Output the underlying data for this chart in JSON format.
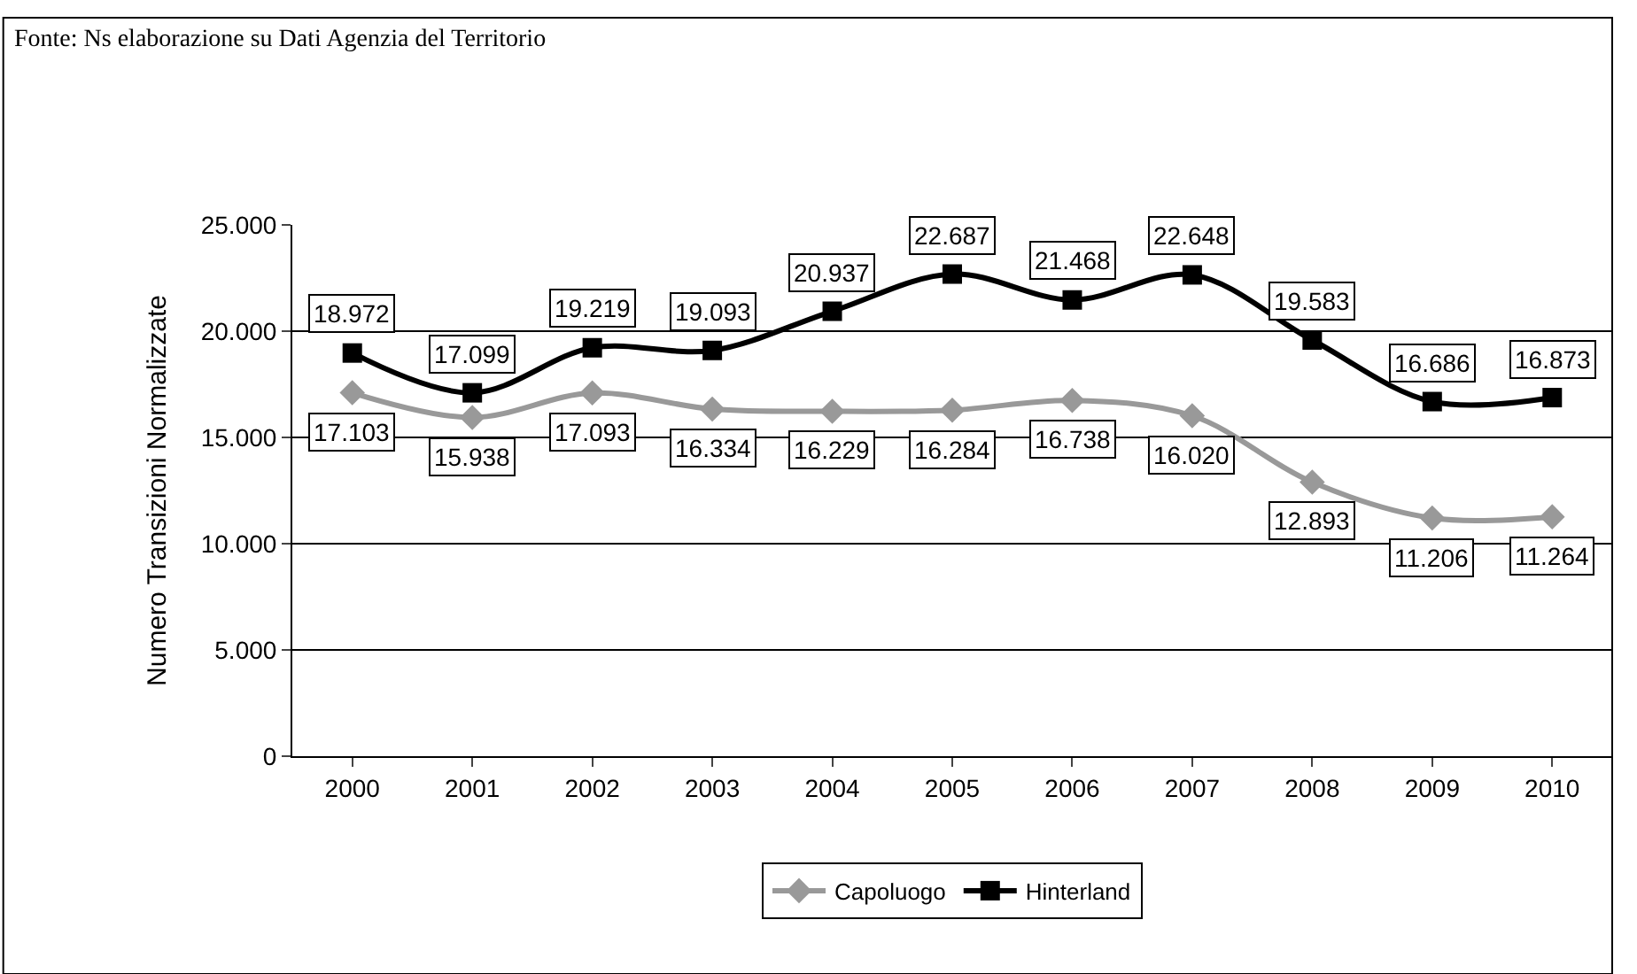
{
  "chart_data": {
    "type": "line",
    "ylabel": "Numero Transizioni Normalizzate",
    "annotations": [
      "Fonte: Ns elaborazione su Dati Agenzia del Territorio"
    ],
    "categories": [
      "2000",
      "2001",
      "2002",
      "2003",
      "2004",
      "2005",
      "2006",
      "2007",
      "2008",
      "2009",
      "2010"
    ],
    "ylim": [
      0,
      25000
    ],
    "yticks": [
      0,
      {
        "value": 5000,
        "label": "5.000"
      },
      {
        "value": 10000,
        "label": "10.000"
      },
      {
        "value": 15000,
        "label": "15.000"
      },
      {
        "value": 20000,
        "label": "20.000"
      },
      {
        "value": 25000,
        "label": "25.000"
      }
    ],
    "grid": "y",
    "legend": "bottom",
    "series": [
      {
        "name": "Capoluogo",
        "color": "#999999",
        "marker": "diamond",
        "values": [
          17103,
          15938,
          17093,
          16334,
          16229,
          16284,
          16738,
          16020,
          12893,
          11206,
          11264
        ],
        "value_labels": [
          "17.103",
          "15.938",
          "17.093",
          "16.334",
          "16.229",
          "16.284",
          "16.738",
          "16.020",
          "12.893",
          "11.206",
          "11.264"
        ]
      },
      {
        "name": "Hinterland",
        "color": "#000000",
        "marker": "square",
        "values": [
          18972,
          17099,
          19219,
          19093,
          20937,
          22687,
          21468,
          22648,
          19583,
          16686,
          16873
        ],
        "value_labels": [
          "18.972",
          "17.099",
          "19.219",
          "19.093",
          "20.937",
          "22.687",
          "21.468",
          "22.648",
          "19.583",
          "16.686",
          "16.873"
        ]
      }
    ]
  }
}
